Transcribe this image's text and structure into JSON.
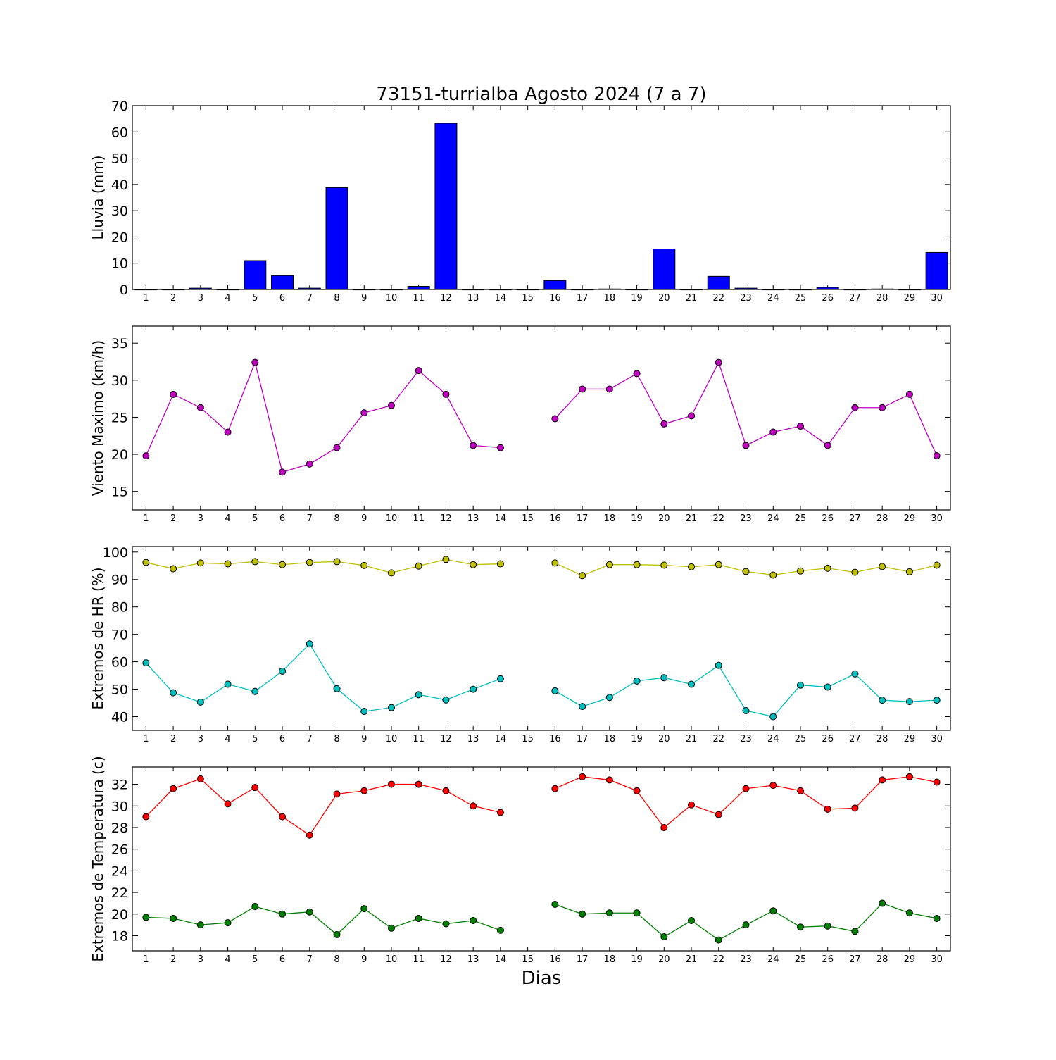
{
  "title": "73151-turrialba Agosto 2024  (7 a 7)",
  "xlabel": "Dias",
  "colors": {
    "rain": "#0000ff",
    "wind": "#bf00bf",
    "hr_max": "#bfbf00",
    "hr_min": "#00bfbf",
    "temp_max": "#ff0000",
    "temp_min": "#008000"
  },
  "chart_data": [
    {
      "type": "bar",
      "ylabel": "Lluvia (mm)",
      "ylim": [
        0,
        70
      ],
      "yticks": [
        0,
        10,
        20,
        30,
        40,
        50,
        60,
        70
      ],
      "categories": [
        "1",
        "2",
        "3",
        "4",
        "5",
        "6",
        "7",
        "8",
        "9",
        "10",
        "11",
        "12",
        "13",
        "14",
        "15",
        "16",
        "17",
        "18",
        "19",
        "20",
        "21",
        "22",
        "23",
        "24",
        "25",
        "26",
        "27",
        "28",
        "29",
        "30"
      ],
      "series": [
        {
          "values": [
            0,
            0,
            0.5,
            0,
            11.0,
            5.3,
            0.5,
            38.8,
            0,
            0,
            1.2,
            63.3,
            0,
            0,
            0,
            3.4,
            0,
            0.2,
            0,
            15.4,
            0,
            5.0,
            0.5,
            0,
            0,
            0.8,
            0,
            0.2,
            0,
            14.1
          ]
        }
      ]
    },
    {
      "type": "line",
      "ylabel": "Viento Maximo (km/h)",
      "ylim": [
        12.5,
        37.3
      ],
      "yticks": [
        15,
        20,
        25,
        30,
        35
      ],
      "categories": [
        "1",
        "2",
        "3",
        "4",
        "5",
        "6",
        "7",
        "8",
        "9",
        "10",
        "11",
        "12",
        "13",
        "14",
        "15",
        "16",
        "17",
        "18",
        "19",
        "20",
        "21",
        "22",
        "23",
        "24",
        "25",
        "26",
        "27",
        "28",
        "29",
        "30"
      ],
      "series": [
        {
          "values": [
            19.8,
            28.1,
            26.3,
            23.0,
            32.4,
            17.6,
            18.7,
            20.9,
            25.6,
            26.6,
            31.3,
            28.1,
            21.2,
            20.9,
            null,
            24.8,
            28.8,
            28.8,
            30.9,
            24.1,
            25.2,
            32.4,
            21.2,
            23.0,
            23.8,
            21.2,
            26.3,
            26.3,
            28.1,
            19.8
          ]
        }
      ]
    },
    {
      "type": "line",
      "ylabel": "Extremos de HR (%)",
      "ylim": [
        35,
        102
      ],
      "yticks": [
        40,
        50,
        60,
        70,
        80,
        90,
        100
      ],
      "categories": [
        "1",
        "2",
        "3",
        "4",
        "5",
        "6",
        "7",
        "8",
        "9",
        "10",
        "11",
        "12",
        "13",
        "14",
        "15",
        "16",
        "17",
        "18",
        "19",
        "20",
        "21",
        "22",
        "23",
        "24",
        "25",
        "26",
        "27",
        "28",
        "29",
        "30"
      ],
      "series": [
        {
          "values": [
            96.2,
            93.9,
            96.0,
            95.7,
            96.5,
            95.4,
            96.2,
            96.5,
            95.1,
            92.4,
            94.9,
            97.3,
            95.4,
            95.7,
            null,
            96.0,
            91.4,
            95.4,
            95.4,
            95.2,
            94.6,
            95.4,
            92.9,
            91.6,
            93.1,
            94.1,
            92.6,
            94.7,
            92.8,
            95.2
          ]
        },
        {
          "values": [
            59.6,
            48.7,
            45.3,
            51.8,
            49.2,
            56.6,
            66.5,
            50.2,
            41.9,
            43.3,
            48.0,
            46.1,
            50.0,
            53.8,
            null,
            49.4,
            43.7,
            47.0,
            53.0,
            54.2,
            51.8,
            58.7,
            42.2,
            40.0,
            51.5,
            50.8,
            55.6,
            46.0,
            45.5,
            46.0
          ]
        }
      ]
    },
    {
      "type": "line",
      "ylabel": "Extremos de Temperatura (c)",
      "ylim": [
        16.6,
        33.6
      ],
      "yticks": [
        18,
        20,
        22,
        24,
        26,
        28,
        30,
        32
      ],
      "categories": [
        "1",
        "2",
        "3",
        "4",
        "5",
        "6",
        "7",
        "8",
        "9",
        "10",
        "11",
        "12",
        "13",
        "14",
        "15",
        "16",
        "17",
        "18",
        "19",
        "20",
        "21",
        "22",
        "23",
        "24",
        "25",
        "26",
        "27",
        "28",
        "29",
        "30"
      ],
      "series": [
        {
          "values": [
            29.0,
            31.6,
            32.5,
            30.2,
            31.7,
            29.0,
            27.3,
            31.1,
            31.4,
            32.0,
            32.0,
            31.4,
            30.0,
            29.4,
            null,
            31.6,
            32.7,
            32.4,
            31.4,
            28.0,
            30.1,
            29.2,
            31.6,
            31.9,
            31.4,
            29.7,
            29.8,
            32.4,
            32.7,
            32.2
          ]
        },
        {
          "values": [
            19.7,
            19.6,
            19.0,
            19.2,
            20.7,
            20.0,
            20.2,
            18.1,
            20.5,
            18.7,
            19.6,
            19.1,
            19.4,
            18.5,
            null,
            20.9,
            20.0,
            20.1,
            20.1,
            17.9,
            19.4,
            17.6,
            19.0,
            20.3,
            18.8,
            18.9,
            18.4,
            21.0,
            20.1,
            19.6
          ]
        }
      ]
    }
  ]
}
